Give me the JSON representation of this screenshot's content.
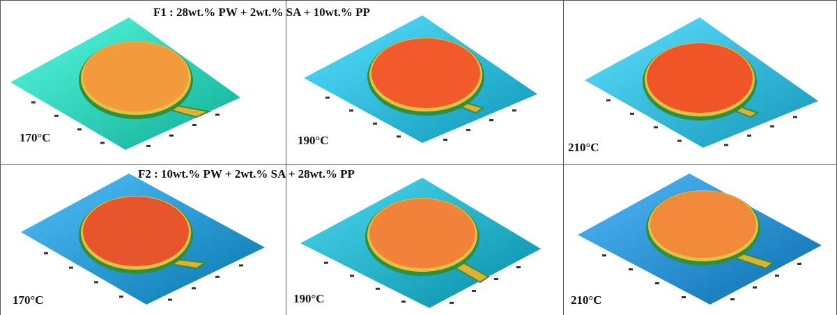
{
  "rows": [
    {
      "title": "F1 : 28wt.% PW + 2wt.% SA + 10wt.% PP",
      "panels": [
        {
          "temperature": "170°C",
          "plate_color": "#40e0c8",
          "disk_color": "#f39a3c"
        },
        {
          "temperature": "190°C",
          "plate_color": "#3fc8e8",
          "disk_color": "#f15a2a"
        },
        {
          "temperature": "210°C",
          "plate_color": "#45c8ea",
          "disk_color": "#f0552a"
        }
      ]
    },
    {
      "title": "F2 : 10wt.% PW + 2wt.% SA + 28wt.% PP",
      "panels": [
        {
          "temperature": "170°C",
          "plate_color": "#3aa8e0",
          "disk_color": "#e8552a"
        },
        {
          "temperature": "190°C",
          "plate_color": "#35c0d8",
          "disk_color": "#f0823a"
        },
        {
          "temperature": "210°C",
          "plate_color": "#3aa0e0",
          "disk_color": "#f08a3a"
        }
      ]
    }
  ]
}
